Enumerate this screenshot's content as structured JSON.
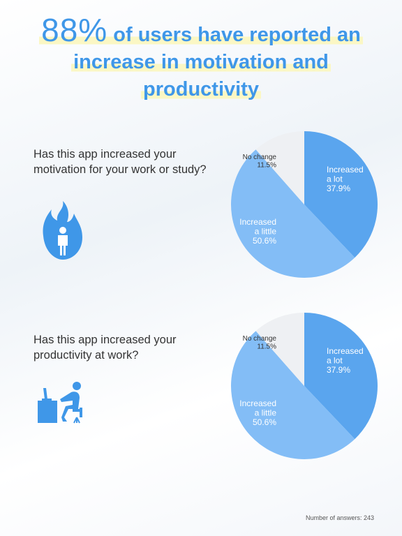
{
  "headline": {
    "percent": "88%",
    "line1_rest": "of users have reported an",
    "line2": "increase in motivation and",
    "line3": "productivity"
  },
  "colors": {
    "accent": "#3f97e8",
    "increased_a_lot": "#5aa5ee",
    "increased_a_little": "#83bdf6",
    "no_change": "#eef0f3",
    "highlight": "#fbf7c4"
  },
  "icons": [
    "fire-person-icon",
    "desk-worker-icon"
  ],
  "questions": [
    {
      "text": "Has this app increased your motivation for your work or study?"
    },
    {
      "text": "Has this app increased your productivity at work?"
    }
  ],
  "chart_data": [
    {
      "type": "pie",
      "question": "Has this app increased your motivation for your work or study?",
      "slices": [
        {
          "label": [
            "Increased",
            "a lot"
          ],
          "value_label": "37.9%",
          "value": 37.9,
          "color": "#5aa5ee",
          "text_color": "#ffffff"
        },
        {
          "label": [
            "Increased",
            "a little"
          ],
          "value_label": "50.6%",
          "value": 50.6,
          "color": "#83bdf6",
          "text_color": "#ffffff"
        },
        {
          "label": [
            "No change"
          ],
          "value_label": "11.5%",
          "value": 11.5,
          "color": "#eef0f3",
          "text_color": "#333333"
        }
      ]
    },
    {
      "type": "pie",
      "question": "Has this app increased your productivity at work?",
      "slices": [
        {
          "label": [
            "Increased",
            "a lot"
          ],
          "value_label": "37.9%",
          "value": 37.9,
          "color": "#5aa5ee",
          "text_color": "#ffffff"
        },
        {
          "label": [
            "Increased",
            "a little"
          ],
          "value_label": "50.6%",
          "value": 50.6,
          "color": "#83bdf6",
          "text_color": "#ffffff"
        },
        {
          "label": [
            "No change"
          ],
          "value_label": "11.5%",
          "value": 11.5,
          "color": "#eef0f3",
          "text_color": "#333333"
        }
      ]
    }
  ],
  "footer": {
    "answers": "Number of answers: 243"
  }
}
